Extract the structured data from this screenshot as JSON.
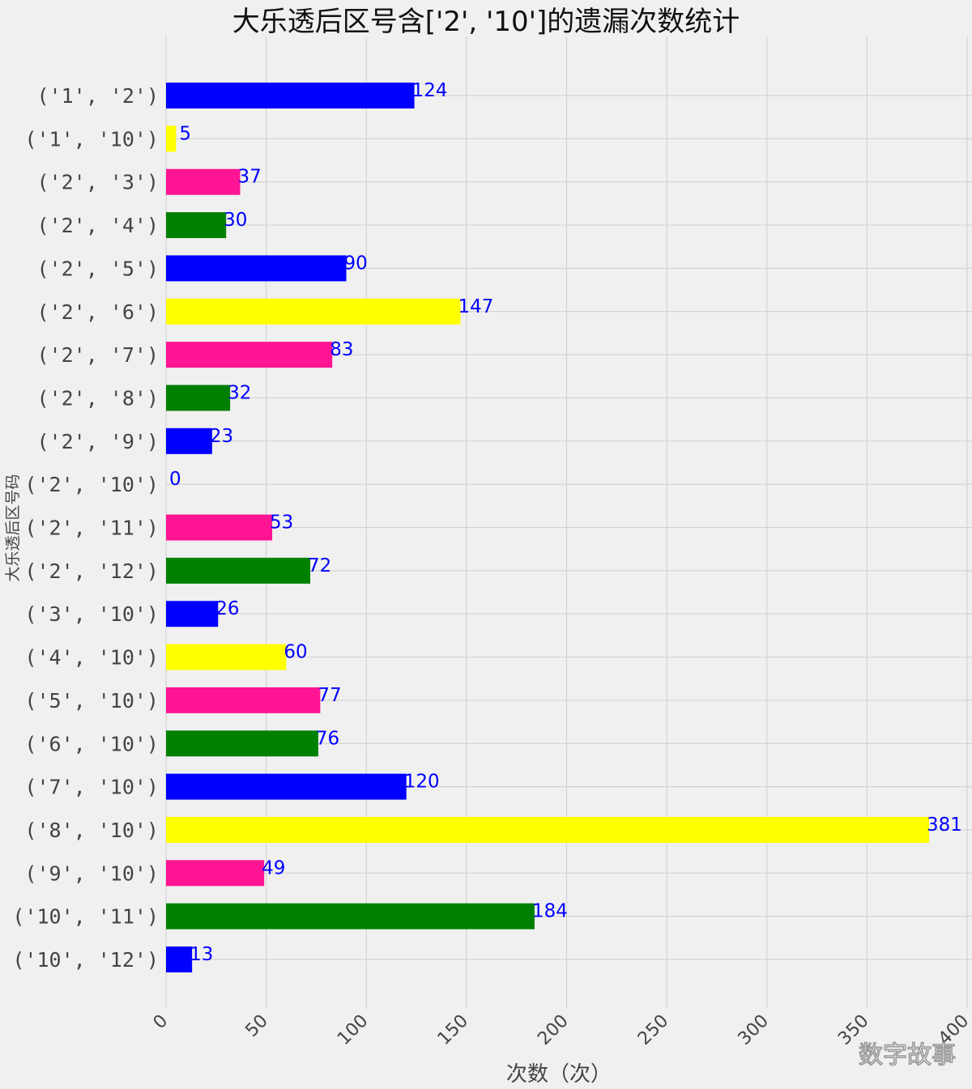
{
  "chart_data": {
    "type": "bar",
    "orientation": "horizontal",
    "title": "大乐透后区号含['2', '10']的遗漏次数统计",
    "xlabel": "次数（次）",
    "ylabel": "大乐透后区号码",
    "categories": [
      "('1', '2')",
      "('1', '10')",
      "('2', '3')",
      "('2', '4')",
      "('2', '5')",
      "('2', '6')",
      "('2', '7')",
      "('2', '8')",
      "('2', '9')",
      "('2', '10')",
      "('2', '11')",
      "('2', '12')",
      "('3', '10')",
      "('4', '10')",
      "('5', '10')",
      "('6', '10')",
      "('7', '10')",
      "('8', '10')",
      "('9', '10')",
      "('10', '11')",
      "('10', '12')"
    ],
    "values": [
      124,
      5,
      37,
      30,
      90,
      147,
      83,
      32,
      23,
      0,
      53,
      72,
      26,
      60,
      77,
      76,
      120,
      381,
      49,
      184,
      13
    ],
    "colors": [
      "#0000ff",
      "#ffff00",
      "#ff1493",
      "#008000"
    ],
    "xticks": [
      "0",
      "50",
      "100",
      "150",
      "200",
      "250",
      "300",
      "350",
      "400"
    ],
    "xlim": [
      0,
      400
    ],
    "grid": true,
    "label_color": "#0000ff"
  },
  "watermark": "数字故事"
}
